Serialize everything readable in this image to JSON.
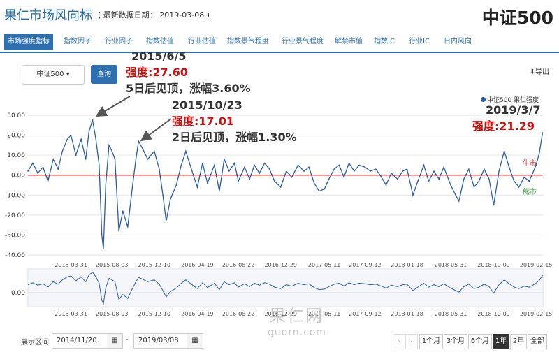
{
  "header": {
    "title": "果仁市场风向标",
    "date_text": "( 最新数据日期： 2019-03-08 )",
    "index_name": "中证500"
  },
  "tabs": [
    {
      "label": "市场强度指标",
      "active": true
    },
    {
      "label": "指数因子"
    },
    {
      "label": "行业因子"
    },
    {
      "label": "指数估值"
    },
    {
      "label": "行业估值"
    },
    {
      "label": "指数景气程度"
    },
    {
      "label": "行业景气程度"
    },
    {
      "label": "解禁市值"
    },
    {
      "label": "指数IC"
    },
    {
      "label": "行业IC"
    },
    {
      "label": "日内风向"
    }
  ],
  "controls": {
    "index_select": "中证500 ▾",
    "query_button": "查询",
    "export_label": "导出",
    "range_label": "展示区间",
    "start_date": "2014/11/20",
    "end_date": "2019/03/08",
    "dash": "-",
    "range_buttons": [
      "1个月",
      "3个月",
      "6个月",
      "1年",
      "2年",
      "全部"
    ],
    "active_range": "1年"
  },
  "annotations": {
    "peak1": {
      "date": "2015/6/5",
      "strength": "强度:27.60",
      "note": "5日后见顶，涨幅3.60%"
    },
    "peak2": {
      "date": "2015/10/23",
      "strength": "强度:17.01",
      "note": "2日后见顶，涨幅1.30%"
    },
    "latest": {
      "date": "2019/3/7",
      "strength": "强度:21.29"
    }
  },
  "legend": {
    "series_name": "中证500 果仁强度",
    "bull": "牛市",
    "bear": "熊市"
  },
  "watermark": {
    "cn": "果仁网",
    "en": "guorn.com"
  },
  "colors": {
    "accent": "#2e6fb0",
    "line": "#2b5ea8",
    "zero_line": "#cc1111",
    "annotation_red": "#cc1111"
  },
  "chart_data": {
    "type": "line",
    "title": "",
    "series": [
      {
        "name": "中证500 果仁强度"
      }
    ],
    "ylim": [
      -40,
      30
    ],
    "yticks": [
      "30.00",
      "20.00",
      "10.00",
      "0.00",
      "-10.00",
      "-20.00",
      "-30.00",
      "-40.00"
    ],
    "xticks": [
      "2015-03-31",
      "2015-08-03",
      "2015-12-10",
      "2016-04-19",
      "2016-08-22",
      "2016-12-29",
      "2017-05-11",
      "2017-09-12",
      "2018-01-18",
      "2018-05-31",
      "2018-10-09",
      "2019-02-15"
    ],
    "navigator_ytick": "0.00",
    "x_range": [
      "2014-11-20",
      "2019-03-08"
    ],
    "points": [
      [
        "2014-11-20",
        2
      ],
      [
        "2014-12-05",
        6
      ],
      [
        "2014-12-20",
        1
      ],
      [
        "2015-01-05",
        4
      ],
      [
        "2015-01-20",
        -3
      ],
      [
        "2015-02-05",
        8
      ],
      [
        "2015-02-20",
        3
      ],
      [
        "2015-03-05",
        12
      ],
      [
        "2015-03-20",
        18
      ],
      [
        "2015-03-31",
        20
      ],
      [
        "2015-04-15",
        10
      ],
      [
        "2015-05-01",
        18
      ],
      [
        "2015-05-15",
        8
      ],
      [
        "2015-05-25",
        22
      ],
      [
        "2015-06-05",
        27.6
      ],
      [
        "2015-06-15",
        18
      ],
      [
        "2015-06-25",
        5
      ],
      [
        "2015-07-03",
        -30
      ],
      [
        "2015-07-08",
        -37
      ],
      [
        "2015-07-15",
        -5
      ],
      [
        "2015-07-25",
        15
      ],
      [
        "2015-08-03",
        12
      ],
      [
        "2015-08-12",
        8
      ],
      [
        "2015-08-24",
        -28
      ],
      [
        "2015-09-05",
        -18
      ],
      [
        "2015-09-20",
        -26
      ],
      [
        "2015-10-05",
        -5
      ],
      [
        "2015-10-15",
        8
      ],
      [
        "2015-10-23",
        17.01
      ],
      [
        "2015-11-05",
        13
      ],
      [
        "2015-11-20",
        8
      ],
      [
        "2015-12-10",
        12
      ],
      [
        "2015-12-25",
        3
      ],
      [
        "2016-01-05",
        -10
      ],
      [
        "2016-01-15",
        -23
      ],
      [
        "2016-01-28",
        -12
      ],
      [
        "2016-02-15",
        -5
      ],
      [
        "2016-03-01",
        5
      ],
      [
        "2016-03-15",
        12
      ],
      [
        "2016-04-01",
        3
      ],
      [
        "2016-04-19",
        -6
      ],
      [
        "2016-05-05",
        6
      ],
      [
        "2016-05-20",
        -4
      ],
      [
        "2016-06-10",
        5
      ],
      [
        "2016-06-25",
        -8
      ],
      [
        "2016-07-10",
        8
      ],
      [
        "2016-07-25",
        2
      ],
      [
        "2016-08-10",
        6
      ],
      [
        "2016-08-22",
        -3
      ],
      [
        "2016-09-10",
        4
      ],
      [
        "2016-09-25",
        -2
      ],
      [
        "2016-10-10",
        5
      ],
      [
        "2016-10-25",
        1
      ],
      [
        "2016-11-10",
        6
      ],
      [
        "2016-11-25",
        3
      ],
      [
        "2016-12-10",
        -3
      ],
      [
        "2016-12-29",
        -6
      ],
      [
        "2017-01-15",
        2
      ],
      [
        "2017-02-01",
        -1
      ],
      [
        "2017-02-20",
        5
      ],
      [
        "2017-03-10",
        2
      ],
      [
        "2017-03-25",
        4
      ],
      [
        "2017-04-10",
        -4
      ],
      [
        "2017-04-25",
        -8
      ],
      [
        "2017-05-11",
        -7
      ],
      [
        "2017-05-25",
        -2
      ],
      [
        "2017-06-10",
        3
      ],
      [
        "2017-06-25",
        5
      ],
      [
        "2017-07-10",
        -1
      ],
      [
        "2017-07-25",
        6
      ],
      [
        "2017-08-10",
        2
      ],
      [
        "2017-08-25",
        5
      ],
      [
        "2017-09-12",
        4
      ],
      [
        "2017-09-28",
        2
      ],
      [
        "2017-10-15",
        3
      ],
      [
        "2017-11-01",
        -1
      ],
      [
        "2017-11-15",
        -5
      ],
      [
        "2017-12-01",
        1
      ],
      [
        "2017-12-20",
        -2
      ],
      [
        "2018-01-05",
        2
      ],
      [
        "2018-01-18",
        3
      ],
      [
        "2018-02-05",
        -10
      ],
      [
        "2018-02-20",
        -3
      ],
      [
        "2018-03-10",
        5
      ],
      [
        "2018-03-25",
        -3
      ],
      [
        "2018-04-10",
        2
      ],
      [
        "2018-04-25",
        -2
      ],
      [
        "2018-05-10",
        4
      ],
      [
        "2018-05-31",
        -5
      ],
      [
        "2018-06-15",
        -10
      ],
      [
        "2018-06-25",
        -13
      ],
      [
        "2018-07-10",
        -2
      ],
      [
        "2018-07-25",
        3
      ],
      [
        "2018-08-10",
        -6
      ],
      [
        "2018-08-25",
        -3
      ],
      [
        "2018-09-10",
        3
      ],
      [
        "2018-09-25",
        -2
      ],
      [
        "2018-10-09",
        -15
      ],
      [
        "2018-10-25",
        2
      ],
      [
        "2018-11-10",
        12
      ],
      [
        "2018-11-25",
        4
      ],
      [
        "2018-12-10",
        -3
      ],
      [
        "2018-12-25",
        -6
      ],
      [
        "2019-01-10",
        -1
      ],
      [
        "2019-01-25",
        -3
      ],
      [
        "2019-02-05",
        1
      ],
      [
        "2019-02-15",
        5
      ],
      [
        "2019-02-25",
        11
      ],
      [
        "2019-03-07",
        21.29
      ]
    ]
  }
}
